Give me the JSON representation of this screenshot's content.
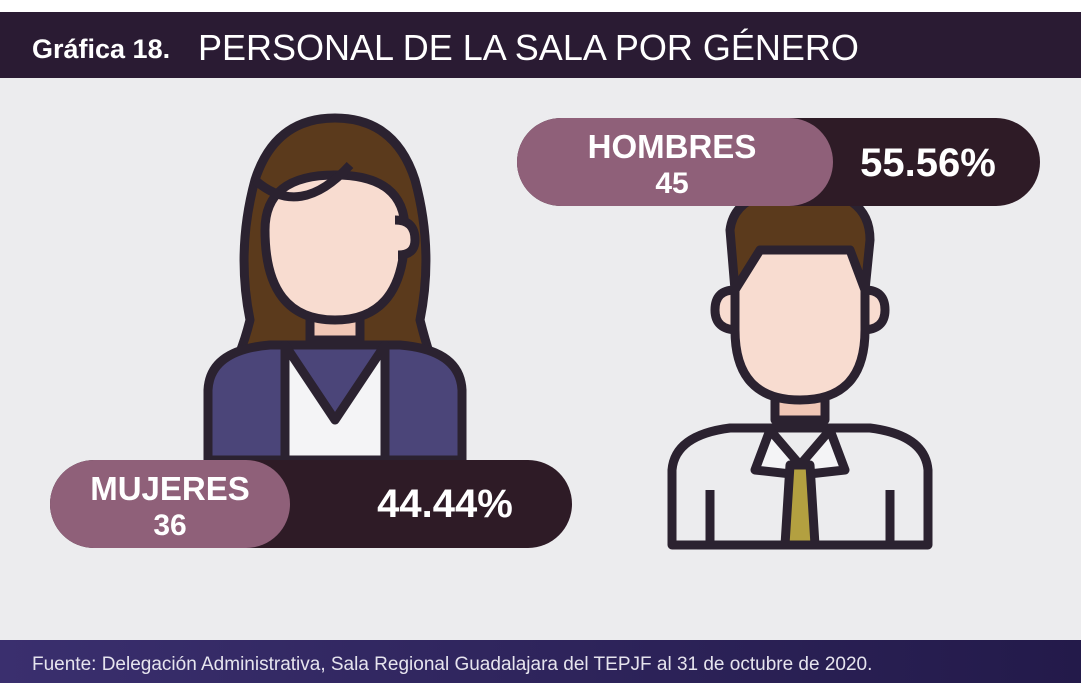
{
  "header": {
    "label": "Gráfica 18.",
    "title": "PERSONAL DE LA SALA POR GÉNERO"
  },
  "groups": [
    {
      "label": "MUJERES",
      "count": 36,
      "percent": "44.44%"
    },
    {
      "label": "HOMBRES",
      "count": 45,
      "percent": "55.56%"
    }
  ],
  "footer": {
    "source": "Fuente: Delegación Administrativa, Sala Regional Guadalajara del TEPJF al 31 de octubre de 2020."
  }
}
